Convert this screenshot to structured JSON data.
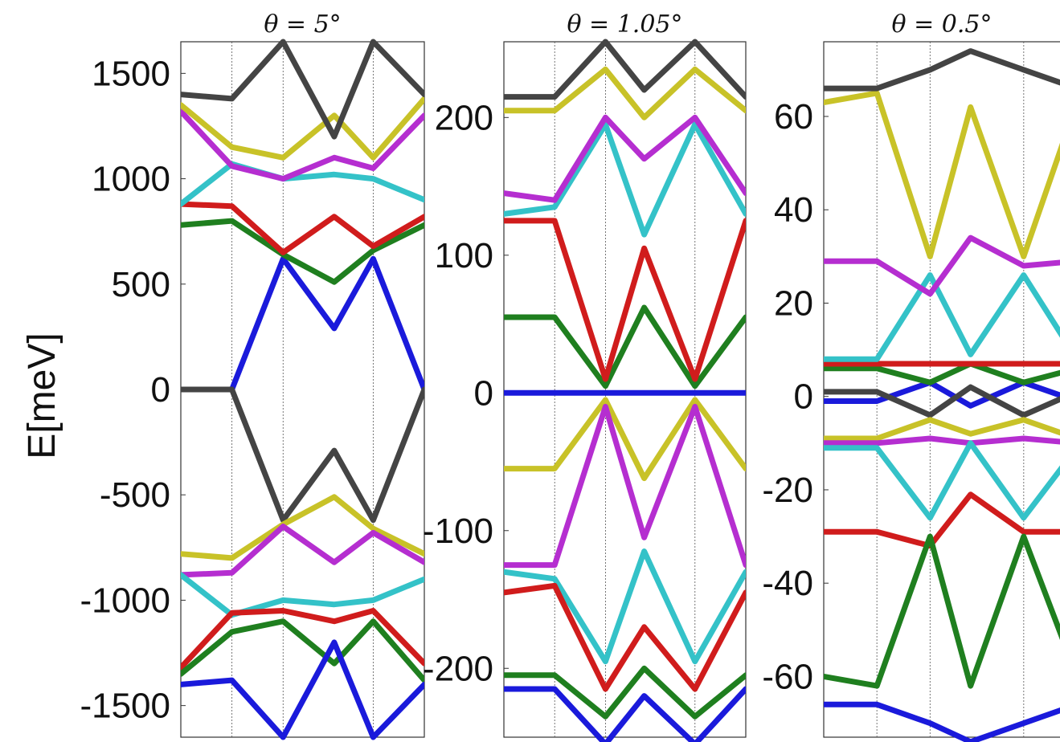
{
  "ylabel": "E[meV]",
  "colors": {
    "blue": "#1a1adb",
    "gray": "#444444",
    "green": "#1f7f1f",
    "red": "#d01c1c",
    "cyan": "#34c2c8",
    "magenta": "#b52ed0",
    "yellow": "#c8c228"
  },
  "chart_data": [
    {
      "type": "line",
      "title": "θ = 5°",
      "ylim": [
        -1650,
        1650
      ],
      "yticks": [
        1500,
        1000,
        500,
        0,
        -500,
        -1000,
        -1500
      ],
      "ytick_labels": [
        "1500",
        "1000",
        "500",
        "0",
        "-500",
        "-1000",
        "-1500"
      ],
      "x": [
        0,
        0.21,
        0.42,
        0.63,
        0.79,
        1.0
      ],
      "grid_vlines": [
        0.21,
        0.42,
        0.79
      ],
      "series": [
        {
          "color": "blue",
          "values": [
            0,
            0,
            620,
            290,
            620,
            0
          ]
        },
        {
          "color": "gray",
          "values": [
            0,
            0,
            -620,
            -290,
            -620,
            0
          ]
        },
        {
          "color": "green",
          "values": [
            780,
            800,
            640,
            510,
            660,
            780
          ]
        },
        {
          "color": "red",
          "values": [
            880,
            870,
            650,
            820,
            680,
            820
          ]
        },
        {
          "color": "cyan",
          "values": [
            880,
            1070,
            1000,
            1020,
            1000,
            900
          ]
        },
        {
          "color": "magenta",
          "values": [
            1320,
            1060,
            1000,
            1100,
            1050,
            1300
          ]
        },
        {
          "color": "yellow",
          "values": [
            1350,
            1150,
            1100,
            1300,
            1100,
            1380
          ]
        },
        {
          "color": "gray",
          "values": [
            1400,
            1380,
            1650,
            1200,
            1650,
            1400
          ]
        },
        {
          "color": "yellow",
          "values": [
            -780,
            -800,
            -640,
            -510,
            -660,
            -780
          ]
        },
        {
          "color": "magenta",
          "values": [
            -880,
            -870,
            -650,
            -820,
            -680,
            -820
          ]
        },
        {
          "color": "cyan",
          "values": [
            -880,
            -1070,
            -1000,
            -1020,
            -1000,
            -900
          ]
        },
        {
          "color": "red",
          "values": [
            -1320,
            -1060,
            -1050,
            -1100,
            -1050,
            -1300
          ]
        },
        {
          "color": "green",
          "values": [
            -1350,
            -1150,
            -1100,
            -1300,
            -1100,
            -1380
          ]
        },
        {
          "color": "blue",
          "values": [
            -1400,
            -1380,
            -1650,
            -1200,
            -1650,
            -1400
          ]
        }
      ]
    },
    {
      "type": "line",
      "title": "θ = 1.05°",
      "ylim": [
        -250,
        255
      ],
      "yticks": [
        200,
        100,
        0,
        -100,
        -200
      ],
      "ytick_labels": [
        "200",
        "100",
        "0",
        "-100",
        "-200"
      ],
      "x": [
        0,
        0.21,
        0.42,
        0.58,
        0.79,
        1.0
      ],
      "grid_vlines": [
        0.21,
        0.42,
        0.79
      ],
      "series": [
        {
          "color": "blue",
          "values": [
            0,
            0,
            0,
            0,
            0,
            0
          ]
        },
        {
          "color": "green",
          "values": [
            55,
            55,
            5,
            62,
            5,
            55
          ]
        },
        {
          "color": "red",
          "values": [
            125,
            125,
            10,
            105,
            10,
            125
          ]
        },
        {
          "color": "cyan",
          "values": [
            130,
            135,
            195,
            115,
            195,
            130
          ]
        },
        {
          "color": "magenta",
          "values": [
            145,
            140,
            200,
            170,
            200,
            145
          ]
        },
        {
          "color": "yellow",
          "values": [
            205,
            205,
            235,
            200,
            235,
            205
          ]
        },
        {
          "color": "gray",
          "values": [
            215,
            215,
            255,
            220,
            255,
            215
          ]
        },
        {
          "color": "yellow",
          "values": [
            -55,
            -55,
            -5,
            -62,
            -5,
            -55
          ]
        },
        {
          "color": "magenta",
          "values": [
            -125,
            -125,
            -10,
            -105,
            -10,
            -125
          ]
        },
        {
          "color": "cyan",
          "values": [
            -130,
            -135,
            -195,
            -115,
            -195,
            -130
          ]
        },
        {
          "color": "red",
          "values": [
            -145,
            -140,
            -215,
            -170,
            -215,
            -145
          ]
        },
        {
          "color": "green",
          "values": [
            -205,
            -205,
            -235,
            -200,
            -235,
            -205
          ]
        },
        {
          "color": "blue",
          "values": [
            -215,
            -215,
            -255,
            -220,
            -255,
            -215
          ]
        }
      ]
    },
    {
      "type": "line",
      "title": "θ = 0.5°",
      "ylim": [
        -73,
        76
      ],
      "yticks": [
        60,
        40,
        20,
        0,
        -20,
        -40,
        -60
      ],
      "ytick_labels": [
        "60",
        "40",
        "20",
        "0",
        "-20",
        "-40",
        "-60"
      ],
      "x": [
        0,
        0.21,
        0.42,
        0.58,
        0.79,
        1.0
      ],
      "grid_vlines": [
        0.21,
        0.42,
        0.79
      ],
      "series": [
        {
          "color": "blue",
          "values": [
            -1,
            -1,
            3,
            -2,
            3,
            -1
          ]
        },
        {
          "color": "gray",
          "values": [
            1,
            1,
            -4,
            2,
            -4,
            1
          ]
        },
        {
          "color": "green",
          "values": [
            6,
            6,
            3,
            7,
            3,
            6
          ]
        },
        {
          "color": "red",
          "values": [
            7,
            7,
            7,
            7,
            7,
            7
          ]
        },
        {
          "color": "cyan",
          "values": [
            8,
            8,
            26,
            9,
            26,
            8
          ]
        },
        {
          "color": "magenta",
          "values": [
            29,
            29,
            22,
            34,
            28,
            29
          ]
        },
        {
          "color": "yellow",
          "values": [
            63,
            65,
            30,
            62,
            30,
            63
          ]
        },
        {
          "color": "gray",
          "values": [
            66,
            66,
            70,
            74,
            70,
            66
          ]
        },
        {
          "color": "yellow",
          "values": [
            -9,
            -9,
            -5,
            -8,
            -5,
            -9
          ]
        },
        {
          "color": "magenta",
          "values": [
            -10,
            -10,
            -9,
            -10,
            -9,
            -10
          ]
        },
        {
          "color": "cyan",
          "values": [
            -11,
            -11,
            -26,
            -10,
            -26,
            -11
          ]
        },
        {
          "color": "red",
          "values": [
            -29,
            -29,
            -32,
            -21,
            -29,
            -29
          ]
        },
        {
          "color": "green",
          "values": [
            -60,
            -62,
            -30,
            -62,
            -30,
            -60
          ]
        },
        {
          "color": "blue",
          "values": [
            -66,
            -66,
            -70,
            -74,
            -70,
            -66
          ]
        }
      ]
    }
  ]
}
